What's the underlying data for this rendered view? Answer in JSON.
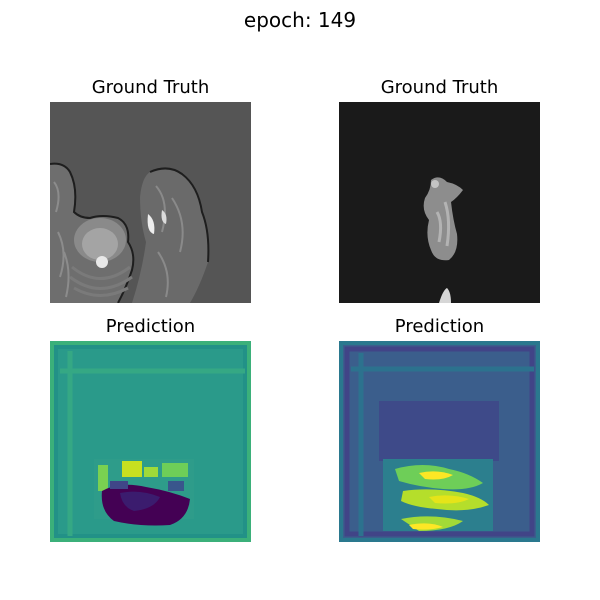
{
  "figure": {
    "title": "epoch: 149"
  },
  "panels": [
    {
      "title": "Ground Truth",
      "image": "mri-slice-grayscale"
    },
    {
      "title": "Ground Truth",
      "image": "mri-mask-grayscale"
    },
    {
      "title": "Prediction",
      "image": "viridis-prediction-map"
    },
    {
      "title": "Prediction",
      "image": "viridis-prediction-map"
    }
  ]
}
